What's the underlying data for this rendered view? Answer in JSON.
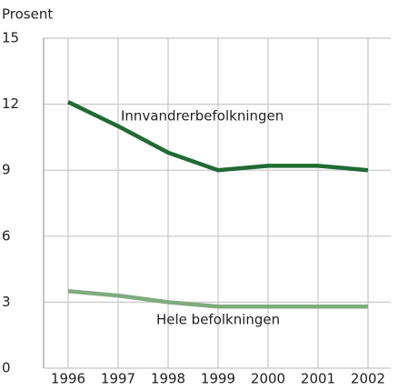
{
  "chart_data": {
    "type": "line",
    "ylabel": "Prosent",
    "categories": [
      "1996",
      "1997",
      "1998",
      "1999",
      "2000",
      "2001",
      "2002"
    ],
    "series": [
      {
        "name": "Innvandrerbefolkningen",
        "color": "#1f6b33",
        "values": [
          12.1,
          11.0,
          9.8,
          9.0,
          9.2,
          9.2,
          9.0
        ]
      },
      {
        "name": "Hele befolkningen",
        "color": "#7fab7f",
        "values": [
          3.5,
          3.3,
          3.0,
          2.8,
          2.8,
          2.8,
          2.8
        ]
      }
    ],
    "ylim": [
      0,
      15
    ],
    "yticks": [
      0,
      3,
      6,
      9,
      12,
      15
    ],
    "grid": true
  }
}
